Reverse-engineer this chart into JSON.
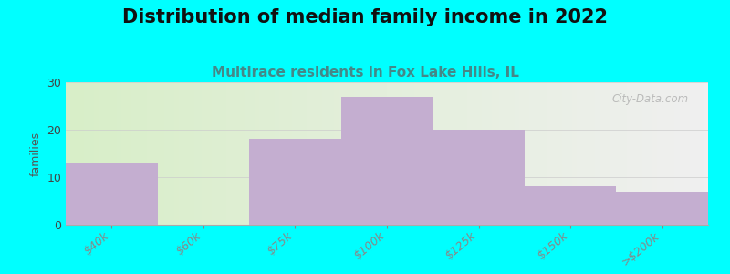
{
  "title": "Distribution of median family income in 2022",
  "subtitle": "Multirace residents in Fox Lake Hills, IL",
  "ylabel": "families",
  "background_color": "#00FFFF",
  "bar_color": "#c4aed0",
  "categories": [
    "$40k",
    "$60k",
    "$75k",
    "$100k",
    "$125k",
    "$150k",
    ">$200k"
  ],
  "values": [
    13,
    0,
    18,
    27,
    20,
    8,
    7
  ],
  "ylim": [
    0,
    30
  ],
  "yticks": [
    0,
    10,
    20,
    30
  ],
  "title_fontsize": 15,
  "subtitle_fontsize": 11,
  "ylabel_fontsize": 9,
  "tick_fontsize": 9,
  "watermark": "City-Data.com",
  "grad_left": "#d8eec8",
  "grad_right": "#f0f0f0"
}
